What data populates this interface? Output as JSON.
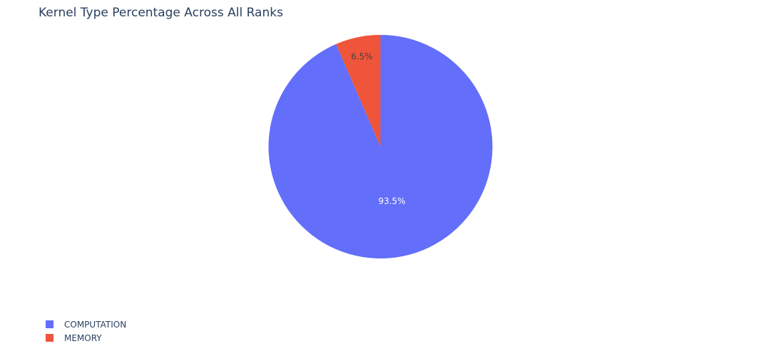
{
  "chart_data": {
    "type": "pie",
    "title": "Kernel Type Percentage Across All Ranks",
    "slices": [
      {
        "label": "COMPUTATION",
        "value": 93.5,
        "display": "93.5%",
        "color": "#636efa",
        "label_color": "#ffffff"
      },
      {
        "label": "MEMORY",
        "value": 6.5,
        "display": "6.5%",
        "color": "#ef553b",
        "label_color": "#444444"
      }
    ],
    "direction": "clockwise",
    "legend_position": "bottom-left"
  }
}
